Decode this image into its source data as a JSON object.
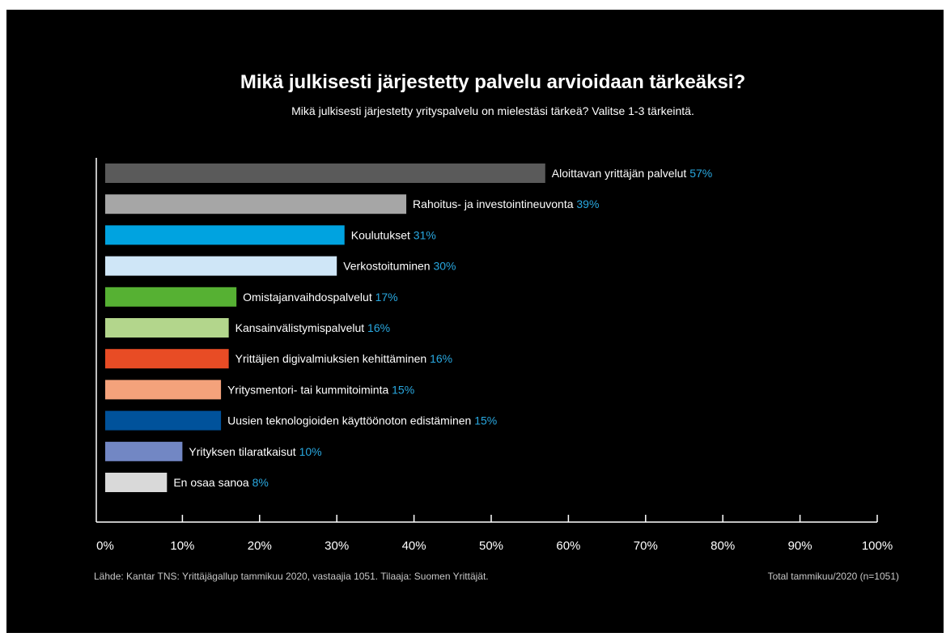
{
  "chart_data": {
    "type": "bar",
    "orientation": "horizontal",
    "title": "Mikä julkisesti järjestetty palvelu arvioidaan tärkeäksi?",
    "subtitle": "Mikä julkisesti järjestetty yrityspalvelu  on mielestäsi tärkeä? Valitse 1-3 tärkeintä.",
    "categories": [
      "Aloittavan yrittäjän palvelut",
      "Rahoitus- ja investointineuvonta",
      "Koulutukset",
      "Verkostoituminen",
      "Omistajanvaihdospalvelut",
      "Kansainvälistymispalvelut",
      "Yrittäjien digivalmiuksien kehittäminen",
      "Yritysmentori- tai kummitoiminta",
      "Uusien teknologioiden käyttöönoton edistäminen",
      "Yrityksen tilaratkaisut",
      "En osaa sanoa"
    ],
    "values": [
      57,
      39,
      31,
      30,
      17,
      16,
      16,
      15,
      15,
      10,
      8
    ],
    "value_labels": [
      "57%",
      "39%",
      "31%",
      "30%",
      "17%",
      "16%",
      "16%",
      "15%",
      "15%",
      "10%",
      "8%"
    ],
    "bar_colors": [
      "#5a5a5a",
      "#a6a6a6",
      "#00a3e0",
      "#cfe6f7",
      "#56b133",
      "#b3d68c",
      "#e84c25",
      "#f4a27b",
      "#00529b",
      "#7287c4",
      "#d9d9d9"
    ],
    "xlim": [
      0,
      100
    ],
    "xticks": [
      0,
      10,
      20,
      30,
      40,
      50,
      60,
      70,
      80,
      90,
      100
    ],
    "xtick_labels": [
      "0%",
      "10%",
      "20%",
      "30%",
      "40%",
      "50%",
      "60%",
      "70%",
      "80%",
      "90%",
      "100%"
    ],
    "grid": false,
    "legend": "none"
  },
  "colors": {
    "background": "#000000",
    "text": "#ffffff",
    "value_label": "#29a8e0",
    "axis": "#ffffff",
    "footer": "#c8c8c8"
  },
  "footer": {
    "source": "Lähde: Kantar TNS: Yrittäjägallup tammikuu 2020, vastaajia 1051. Tilaaja: Suomen Yrittäjät.",
    "total": "Total tammikuu/2020 (n=1051)"
  }
}
